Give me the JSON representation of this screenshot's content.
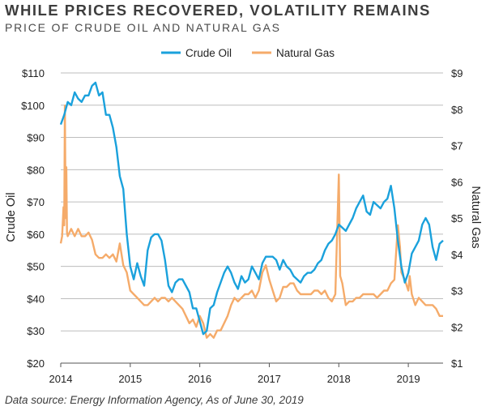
{
  "title": "WHILE PRICES RECOVERED, VOLATILITY REMAINS",
  "subtitle": "PRICE OF CRUDE OIL AND NATURAL GAS",
  "source": "Data source: Energy Information Agency, As of June 30, 2019",
  "chart_data": {
    "type": "line",
    "xlim": [
      2014,
      2019.5
    ],
    "x_ticks": [
      "2014",
      "2015",
      "2016",
      "2017",
      "2018",
      "2019"
    ],
    "y_left": {
      "label": "Crude Oil",
      "ylim": [
        20,
        110
      ],
      "ticks": [
        "$20",
        "$30",
        "$40",
        "$50",
        "$60",
        "$70",
        "$80",
        "$90",
        "$100",
        "$110"
      ]
    },
    "y_right": {
      "label": "Natural Gas",
      "ylim": [
        1,
        9
      ],
      "ticks": [
        "$1",
        "$2",
        "$3",
        "$4",
        "$5",
        "$6",
        "$7",
        "$8",
        "$9"
      ]
    },
    "grid": true,
    "legend": "top-center",
    "series": [
      {
        "name": "Crude Oil",
        "axis": "left",
        "color": "#1aa1dc",
        "points": [
          [
            2014.0,
            94
          ],
          [
            2014.05,
            97
          ],
          [
            2014.1,
            101
          ],
          [
            2014.15,
            100
          ],
          [
            2014.2,
            104
          ],
          [
            2014.25,
            102
          ],
          [
            2014.3,
            101
          ],
          [
            2014.35,
            103
          ],
          [
            2014.4,
            103
          ],
          [
            2014.45,
            106
          ],
          [
            2014.5,
            107
          ],
          [
            2014.55,
            103
          ],
          [
            2014.6,
            104
          ],
          [
            2014.65,
            97
          ],
          [
            2014.7,
            97
          ],
          [
            2014.75,
            93
          ],
          [
            2014.8,
            87
          ],
          [
            2014.85,
            78
          ],
          [
            2014.9,
            74
          ],
          [
            2014.95,
            60
          ],
          [
            2015.0,
            50
          ],
          [
            2015.05,
            46
          ],
          [
            2015.1,
            51
          ],
          [
            2015.15,
            47
          ],
          [
            2015.2,
            44
          ],
          [
            2015.25,
            55
          ],
          [
            2015.3,
            59
          ],
          [
            2015.35,
            60
          ],
          [
            2015.4,
            60
          ],
          [
            2015.45,
            58
          ],
          [
            2015.5,
            52
          ],
          [
            2015.55,
            44
          ],
          [
            2015.6,
            42
          ],
          [
            2015.65,
            45
          ],
          [
            2015.7,
            46
          ],
          [
            2015.75,
            46
          ],
          [
            2015.8,
            44
          ],
          [
            2015.85,
            42
          ],
          [
            2015.9,
            37
          ],
          [
            2015.95,
            37
          ],
          [
            2016.0,
            33
          ],
          [
            2016.05,
            29
          ],
          [
            2016.1,
            30
          ],
          [
            2016.15,
            37
          ],
          [
            2016.2,
            38
          ],
          [
            2016.25,
            42
          ],
          [
            2016.3,
            45
          ],
          [
            2016.35,
            48
          ],
          [
            2016.4,
            50
          ],
          [
            2016.45,
            48
          ],
          [
            2016.5,
            45
          ],
          [
            2016.55,
            43
          ],
          [
            2016.6,
            47
          ],
          [
            2016.65,
            45
          ],
          [
            2016.7,
            46
          ],
          [
            2016.75,
            50
          ],
          [
            2016.8,
            48
          ],
          [
            2016.85,
            46
          ],
          [
            2016.9,
            51
          ],
          [
            2016.95,
            53
          ],
          [
            2017.0,
            53
          ],
          [
            2017.05,
            53
          ],
          [
            2017.1,
            52
          ],
          [
            2017.15,
            49
          ],
          [
            2017.2,
            52
          ],
          [
            2017.25,
            50
          ],
          [
            2017.3,
            49
          ],
          [
            2017.35,
            47
          ],
          [
            2017.4,
            46
          ],
          [
            2017.45,
            45
          ],
          [
            2017.5,
            47
          ],
          [
            2017.55,
            48
          ],
          [
            2017.6,
            48
          ],
          [
            2017.65,
            49
          ],
          [
            2017.7,
            51
          ],
          [
            2017.75,
            52
          ],
          [
            2017.8,
            55
          ],
          [
            2017.85,
            57
          ],
          [
            2017.9,
            58
          ],
          [
            2017.95,
            60
          ],
          [
            2018.0,
            63
          ],
          [
            2018.05,
            62
          ],
          [
            2018.1,
            61
          ],
          [
            2018.15,
            63
          ],
          [
            2018.2,
            65
          ],
          [
            2018.25,
            68
          ],
          [
            2018.3,
            70
          ],
          [
            2018.35,
            72
          ],
          [
            2018.4,
            67
          ],
          [
            2018.45,
            66
          ],
          [
            2018.5,
            70
          ],
          [
            2018.55,
            69
          ],
          [
            2018.6,
            68
          ],
          [
            2018.65,
            70
          ],
          [
            2018.7,
            71
          ],
          [
            2018.75,
            75
          ],
          [
            2018.8,
            68
          ],
          [
            2018.85,
            58
          ],
          [
            2018.9,
            50
          ],
          [
            2018.95,
            45
          ],
          [
            2019.0,
            48
          ],
          [
            2019.05,
            54
          ],
          [
            2019.1,
            56
          ],
          [
            2019.15,
            58
          ],
          [
            2019.2,
            63
          ],
          [
            2019.25,
            65
          ],
          [
            2019.3,
            63
          ],
          [
            2019.35,
            56
          ],
          [
            2019.4,
            52
          ],
          [
            2019.45,
            57
          ],
          [
            2019.5,
            58
          ]
        ]
      },
      {
        "name": "Natural Gas",
        "axis": "right",
        "color": "#f5ab6a",
        "points": [
          [
            2014.0,
            4.3
          ],
          [
            2014.02,
            4.5
          ],
          [
            2014.04,
            5.3
          ],
          [
            2014.05,
            4.8
          ],
          [
            2014.06,
            8.1
          ],
          [
            2014.07,
            5.0
          ],
          [
            2014.08,
            6.4
          ],
          [
            2014.09,
            4.6
          ],
          [
            2014.1,
            4.5
          ],
          [
            2014.15,
            4.7
          ],
          [
            2014.2,
            4.5
          ],
          [
            2014.25,
            4.7
          ],
          [
            2014.3,
            4.5
          ],
          [
            2014.35,
            4.5
          ],
          [
            2014.4,
            4.6
          ],
          [
            2014.45,
            4.4
          ],
          [
            2014.5,
            4.0
          ],
          [
            2014.55,
            3.9
          ],
          [
            2014.6,
            3.9
          ],
          [
            2014.65,
            4.0
          ],
          [
            2014.7,
            3.9
          ],
          [
            2014.75,
            4.0
          ],
          [
            2014.8,
            3.8
          ],
          [
            2014.85,
            4.3
          ],
          [
            2014.9,
            3.7
          ],
          [
            2014.95,
            3.5
          ],
          [
            2015.0,
            3.0
          ],
          [
            2015.05,
            2.9
          ],
          [
            2015.1,
            2.8
          ],
          [
            2015.15,
            2.7
          ],
          [
            2015.2,
            2.6
          ],
          [
            2015.25,
            2.6
          ],
          [
            2015.3,
            2.7
          ],
          [
            2015.35,
            2.8
          ],
          [
            2015.4,
            2.7
          ],
          [
            2015.45,
            2.8
          ],
          [
            2015.5,
            2.8
          ],
          [
            2015.55,
            2.7
          ],
          [
            2015.6,
            2.8
          ],
          [
            2015.65,
            2.7
          ],
          [
            2015.7,
            2.6
          ],
          [
            2015.75,
            2.5
          ],
          [
            2015.8,
            2.3
          ],
          [
            2015.85,
            2.1
          ],
          [
            2015.9,
            2.2
          ],
          [
            2015.95,
            2.0
          ],
          [
            2016.0,
            2.3
          ],
          [
            2016.05,
            2.1
          ],
          [
            2016.1,
            1.7
          ],
          [
            2016.15,
            1.8
          ],
          [
            2016.2,
            1.7
          ],
          [
            2016.25,
            1.9
          ],
          [
            2016.3,
            1.9
          ],
          [
            2016.35,
            2.1
          ],
          [
            2016.4,
            2.3
          ],
          [
            2016.45,
            2.6
          ],
          [
            2016.5,
            2.8
          ],
          [
            2016.55,
            2.7
          ],
          [
            2016.6,
            2.8
          ],
          [
            2016.65,
            2.9
          ],
          [
            2016.7,
            2.9
          ],
          [
            2016.75,
            3.0
          ],
          [
            2016.8,
            2.8
          ],
          [
            2016.85,
            3.0
          ],
          [
            2016.9,
            3.5
          ],
          [
            2016.95,
            3.7
          ],
          [
            2017.0,
            3.3
          ],
          [
            2017.05,
            3.0
          ],
          [
            2017.1,
            2.7
          ],
          [
            2017.15,
            2.8
          ],
          [
            2017.2,
            3.1
          ],
          [
            2017.25,
            3.1
          ],
          [
            2017.3,
            3.2
          ],
          [
            2017.35,
            3.2
          ],
          [
            2017.4,
            3.0
          ],
          [
            2017.45,
            2.9
          ],
          [
            2017.5,
            2.9
          ],
          [
            2017.55,
            2.9
          ],
          [
            2017.6,
            2.9
          ],
          [
            2017.65,
            3.0
          ],
          [
            2017.7,
            3.0
          ],
          [
            2017.75,
            2.9
          ],
          [
            2017.8,
            3.0
          ],
          [
            2017.85,
            2.8
          ],
          [
            2017.9,
            2.7
          ],
          [
            2017.95,
            2.9
          ],
          [
            2018.0,
            6.2
          ],
          [
            2018.02,
            3.4
          ],
          [
            2018.05,
            3.2
          ],
          [
            2018.1,
            2.6
          ],
          [
            2018.15,
            2.7
          ],
          [
            2018.2,
            2.7
          ],
          [
            2018.25,
            2.8
          ],
          [
            2018.3,
            2.8
          ],
          [
            2018.35,
            2.9
          ],
          [
            2018.4,
            2.9
          ],
          [
            2018.45,
            2.9
          ],
          [
            2018.5,
            2.9
          ],
          [
            2018.55,
            2.8
          ],
          [
            2018.6,
            2.9
          ],
          [
            2018.65,
            3.0
          ],
          [
            2018.7,
            3.0
          ],
          [
            2018.75,
            3.2
          ],
          [
            2018.8,
            3.3
          ],
          [
            2018.85,
            4.8
          ],
          [
            2018.88,
            4.2
          ],
          [
            2018.9,
            3.5
          ],
          [
            2018.95,
            3.3
          ],
          [
            2019.0,
            3.0
          ],
          [
            2019.02,
            3.4
          ],
          [
            2019.05,
            2.9
          ],
          [
            2019.1,
            2.6
          ],
          [
            2019.15,
            2.8
          ],
          [
            2019.2,
            2.7
          ],
          [
            2019.25,
            2.6
          ],
          [
            2019.3,
            2.6
          ],
          [
            2019.35,
            2.6
          ],
          [
            2019.4,
            2.5
          ],
          [
            2019.45,
            2.3
          ],
          [
            2019.5,
            2.3
          ]
        ]
      }
    ]
  }
}
